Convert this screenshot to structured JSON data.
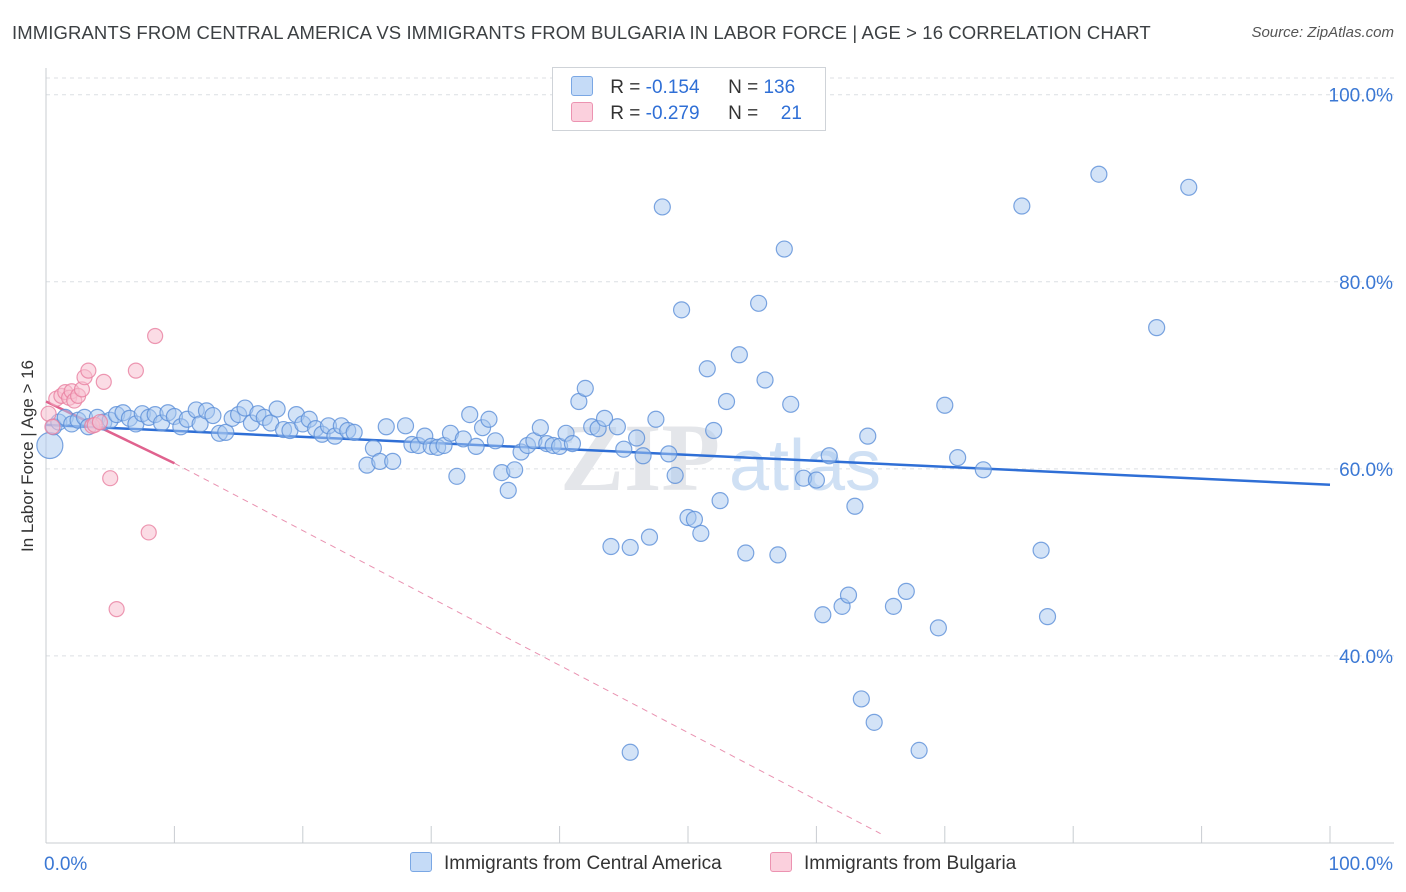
{
  "header": {
    "title": "IMMIGRANTS FROM CENTRAL AMERICA VS IMMIGRANTS FROM BULGARIA IN LABOR FORCE | AGE > 16 CORRELATION CHART",
    "source": "Source: ZipAtlas.com"
  },
  "legend": {
    "rows": [
      {
        "r_label": "R = ",
        "r_value": "-0.154",
        "n_label": "N = ",
        "n_value": "136"
      },
      {
        "r_label": "R = ",
        "r_value": "-0.279",
        "n_label": "N = ",
        "n_value": "21"
      }
    ]
  },
  "watermark": {
    "zip": "ZIP",
    "atlas": "atlas"
  },
  "colors": {
    "blue_fill": "#a8c8f0",
    "blue_stroke": "#5b8fd8",
    "blue_line": "#2f6fd6",
    "pink_fill": "#f7bfd0",
    "pink_stroke": "#e87fa0",
    "pink_line": "#e0628e",
    "axis_text": "#3b78d4",
    "grid": "#dcdfe3"
  },
  "chart_data": {
    "type": "scatter",
    "title": "IMMIGRANTS FROM CENTRAL AMERICA VS IMMIGRANTS FROM BULGARIA IN LABOR FORCE | AGE > 16 CORRELATION CHART",
    "xlabel": "",
    "ylabel": "In Labor Force | Age > 16",
    "xlim": [
      0,
      100
    ],
    "ylim": [
      20,
      102
    ],
    "x_tick_labels": [
      "0.0%",
      "100.0%"
    ],
    "y_ticks": [
      40,
      60,
      80,
      100
    ],
    "y_tick_labels": [
      "40.0%",
      "60.0%",
      "80.0%",
      "100.0%"
    ],
    "grid": true,
    "series": [
      {
        "name": "Immigrants from Central America",
        "color": "#a8c8f0",
        "trend": {
          "x": [
            0,
            100
          ],
          "y": [
            64.7,
            58.3
          ]
        },
        "points": [
          [
            0.3,
            62.5
          ],
          [
            0.6,
            64.5
          ],
          [
            1,
            65
          ],
          [
            1.5,
            65.5
          ],
          [
            2,
            64.8
          ],
          [
            2.5,
            65.2
          ],
          [
            3,
            65.5
          ],
          [
            3.3,
            64.5
          ],
          [
            4,
            65.5
          ],
          [
            4.5,
            65
          ],
          [
            5,
            65.2
          ],
          [
            5.5,
            65.8
          ],
          [
            6,
            66
          ],
          [
            6.5,
            65.4
          ],
          [
            7,
            64.8
          ],
          [
            7.5,
            65.9
          ],
          [
            8,
            65.5
          ],
          [
            8.5,
            65.8
          ],
          [
            9,
            64.9
          ],
          [
            9.5,
            66
          ],
          [
            10,
            65.6
          ],
          [
            10.5,
            64.5
          ],
          [
            11,
            65.3
          ],
          [
            11.7,
            66.3
          ],
          [
            12,
            64.8
          ],
          [
            12.5,
            66.2
          ],
          [
            13,
            65.7
          ],
          [
            13.5,
            63.8
          ],
          [
            14,
            63.9
          ],
          [
            14.5,
            65.4
          ],
          [
            15,
            65.8
          ],
          [
            15.5,
            66.5
          ],
          [
            16,
            64.9
          ],
          [
            16.5,
            65.9
          ],
          [
            17,
            65.5
          ],
          [
            17.5,
            64.9
          ],
          [
            18,
            66.4
          ],
          [
            18.5,
            64.2
          ],
          [
            19,
            64.1
          ],
          [
            19.5,
            65.8
          ],
          [
            20,
            64.8
          ],
          [
            20.5,
            65.3
          ],
          [
            21,
            64.3
          ],
          [
            21.5,
            63.7
          ],
          [
            22,
            64.6
          ],
          [
            22.5,
            63.5
          ],
          [
            23,
            64.6
          ],
          [
            23.5,
            64.1
          ],
          [
            24,
            63.9
          ],
          [
            25,
            60.4
          ],
          [
            25.5,
            62.2
          ],
          [
            26,
            60.8
          ],
          [
            26.5,
            64.5
          ],
          [
            27,
            60.8
          ],
          [
            28,
            64.6
          ],
          [
            28.5,
            62.6
          ],
          [
            29,
            62.5
          ],
          [
            29.5,
            63.5
          ],
          [
            30,
            62.4
          ],
          [
            30.5,
            62.3
          ],
          [
            31,
            62.5
          ],
          [
            31.5,
            63.8
          ],
          [
            32,
            59.2
          ],
          [
            32.5,
            63.2
          ],
          [
            33,
            65.8
          ],
          [
            33.5,
            62.4
          ],
          [
            34,
            64.4
          ],
          [
            34.5,
            65.3
          ],
          [
            35,
            63
          ],
          [
            35.5,
            59.6
          ],
          [
            36,
            57.7
          ],
          [
            36.5,
            59.9
          ],
          [
            37,
            61.8
          ],
          [
            37.5,
            62.5
          ],
          [
            38,
            63
          ],
          [
            38.5,
            64.4
          ],
          [
            39,
            62.7
          ],
          [
            39.5,
            62.5
          ],
          [
            40,
            62.4
          ],
          [
            40.5,
            63.8
          ],
          [
            41,
            62.7
          ],
          [
            41.5,
            67.2
          ],
          [
            42,
            68.6
          ],
          [
            42.5,
            64.5
          ],
          [
            43,
            64.3
          ],
          [
            43.5,
            65.4
          ],
          [
            44,
            51.7
          ],
          [
            44.5,
            64.5
          ],
          [
            45,
            62.1
          ],
          [
            45.5,
            51.6
          ],
          [
            46,
            63.3
          ],
          [
            46.5,
            61.4
          ],
          [
            47,
            52.7
          ],
          [
            47.5,
            65.3
          ],
          [
            48,
            88
          ],
          [
            48.5,
            61.6
          ],
          [
            49,
            59.3
          ],
          [
            49.5,
            77
          ],
          [
            50,
            54.8
          ],
          [
            50.5,
            54.6
          ],
          [
            51,
            53.1
          ],
          [
            51.5,
            70.7
          ],
          [
            52,
            64.1
          ],
          [
            52.5,
            56.6
          ],
          [
            53,
            67.2
          ],
          [
            54,
            72.2
          ],
          [
            54.5,
            51
          ],
          [
            55.5,
            77.7
          ],
          [
            56,
            69.5
          ],
          [
            57,
            50.8
          ],
          [
            57.5,
            83.5
          ],
          [
            58,
            66.9
          ],
          [
            59,
            59
          ],
          [
            60,
            58.8
          ],
          [
            60.5,
            44.4
          ],
          [
            61,
            61.4
          ],
          [
            62,
            45.3
          ],
          [
            62.5,
            46.5
          ],
          [
            63,
            56
          ],
          [
            63.5,
            35.4
          ],
          [
            64,
            63.5
          ],
          [
            64.5,
            32.9
          ],
          [
            66,
            45.3
          ],
          [
            67,
            46.9
          ],
          [
            68,
            29.9
          ],
          [
            69.5,
            43
          ],
          [
            70,
            66.8
          ],
          [
            71,
            61.2
          ],
          [
            73,
            59.9
          ],
          [
            76,
            88.1
          ],
          [
            77.5,
            51.3
          ],
          [
            78,
            44.2
          ],
          [
            82,
            91.5
          ],
          [
            86.5,
            75.1
          ],
          [
            89,
            90.1
          ],
          [
            45.5,
            29.7
          ]
        ]
      },
      {
        "name": "Immigrants from Bulgaria",
        "color": "#f7bfd0",
        "trend": {
          "x": [
            0,
            10
          ],
          "y": [
            67.2,
            60.6
          ]
        },
        "trend_dashed": {
          "x": [
            10,
            65
          ],
          "y": [
            60.6,
            21
          ]
        },
        "points": [
          [
            0.2,
            65.9
          ],
          [
            0.5,
            64.5
          ],
          [
            0.8,
            67.5
          ],
          [
            1.2,
            67.8
          ],
          [
            1.5,
            68.2
          ],
          [
            1.8,
            67.6
          ],
          [
            2,
            68.3
          ],
          [
            2.2,
            67.3
          ],
          [
            2.5,
            67.8
          ],
          [
            2.8,
            68.5
          ],
          [
            3,
            69.8
          ],
          [
            3.3,
            70.5
          ],
          [
            3.6,
            64.6
          ],
          [
            3.8,
            64.7
          ],
          [
            4.2,
            65
          ],
          [
            4.5,
            69.3
          ],
          [
            5,
            59
          ],
          [
            5.5,
            45
          ],
          [
            7,
            70.5
          ],
          [
            8,
            53.2
          ],
          [
            8.5,
            74.2
          ]
        ]
      }
    ]
  },
  "bottom_legend": [
    {
      "label": "Immigrants from Central America"
    },
    {
      "label": "Immigrants from Bulgaria"
    }
  ]
}
